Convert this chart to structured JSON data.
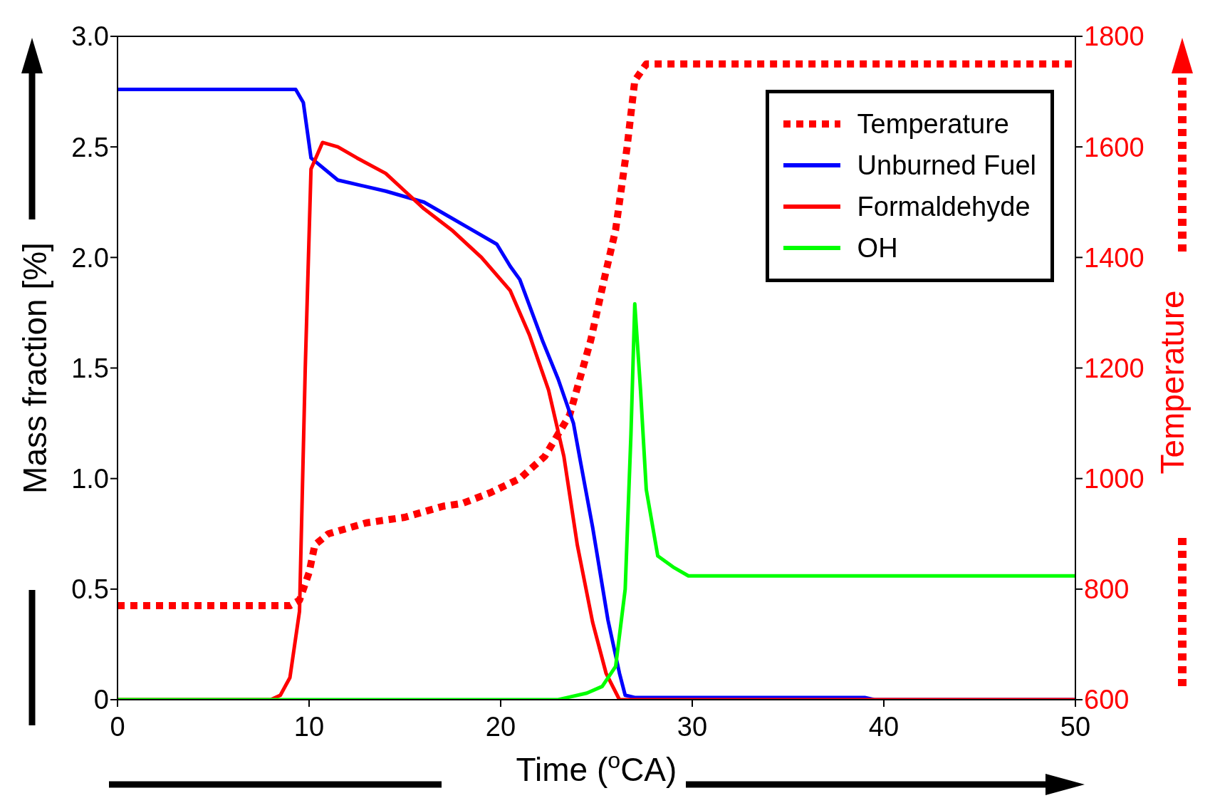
{
  "chart_data": {
    "type": "line",
    "xlabel": "Time ($^{o}$CA)",
    "ylabel": "Mass fraction [%]",
    "y2label": "Temperature",
    "xlim": [
      0,
      50
    ],
    "xticks": [
      0,
      10,
      20,
      30,
      40,
      50
    ],
    "ylim": [
      0,
      3
    ],
    "yticks": [
      0,
      {
        "value": 0.5,
        "label": "0.5"
      },
      {
        "value": 1,
        "label": "1.0"
      },
      {
        "value": 1.5,
        "label": "1.5"
      },
      {
        "value": 2,
        "label": "2.0"
      },
      {
        "value": 2.5,
        "label": "2.5"
      },
      {
        "value": 3,
        "label": "3.0"
      }
    ],
    "y2lim": [
      600,
      1800
    ],
    "y2ticks": [
      600,
      800,
      1000,
      1200,
      1400,
      1600,
      1800
    ],
    "legend": "top right",
    "grid": false,
    "marker": "none",
    "series": [
      {
        "name": "Temperature",
        "color": "#ff0000",
        "axis": "y2",
        "line_style": "dashed",
        "x": [
          0,
          9,
          9.5,
          10,
          10.3,
          11,
          13,
          15,
          17,
          18,
          19.5,
          21,
          22.3,
          23.6,
          24.7,
          25.4,
          26,
          26.6,
          27,
          27.6,
          50
        ],
        "values": [
          770,
          770,
          780,
          830,
          880,
          900,
          920,
          930,
          950,
          955,
          975,
          1000,
          1040,
          1115,
          1250,
          1360,
          1450,
          1600,
          1720,
          1750,
          1750
        ]
      },
      {
        "name": "Unburned Fuel",
        "color": "#0000ff",
        "line_style": "solid",
        "x": [
          0,
          9.3,
          9.7,
          10.1,
          11.5,
          14,
          16,
          17,
          18.2,
          19.8,
          20.5,
          21,
          22.2,
          23,
          23.8,
          24.2,
          24.8,
          25.6,
          26.2,
          26.5,
          27,
          39,
          39.5,
          50
        ],
        "values": [
          2.76,
          2.76,
          2.7,
          2.45,
          2.35,
          2.3,
          2.25,
          2.2,
          2.14,
          2.06,
          1.96,
          1.9,
          1.62,
          1.45,
          1.25,
          1.06,
          0.78,
          0.36,
          0.12,
          0.02,
          0.01,
          0.01,
          0,
          0
        ]
      },
      {
        "name": "Formaldehyde",
        "color": "#ff0000",
        "line_style": "solid",
        "x": [
          0,
          8,
          8.5,
          9,
          9.5,
          9.8,
          10.1,
          10.7,
          11.5,
          12.5,
          14,
          15,
          16,
          17.5,
          19,
          20.5,
          21.5,
          22.5,
          23.3,
          24,
          24.8,
          25.5,
          26.2,
          50
        ],
        "values": [
          0,
          0,
          0.02,
          0.1,
          0.4,
          1.5,
          2.4,
          2.52,
          2.5,
          2.45,
          2.38,
          2.3,
          2.22,
          2.12,
          2,
          1.85,
          1.65,
          1.4,
          1.1,
          0.7,
          0.35,
          0.12,
          0,
          0
        ]
      },
      {
        "name": "OH",
        "color": "#00ff00",
        "line_style": "solid",
        "x": [
          0,
          23,
          23.5,
          24.5,
          25.3,
          26,
          26.5,
          26.8,
          27,
          27.3,
          27.6,
          28.2,
          29,
          29.8,
          50
        ],
        "values": [
          0,
          0,
          0.01,
          0.03,
          0.06,
          0.15,
          0.5,
          1.2,
          1.79,
          1.4,
          0.95,
          0.65,
          0.6,
          0.56,
          0.56
        ]
      }
    ]
  }
}
